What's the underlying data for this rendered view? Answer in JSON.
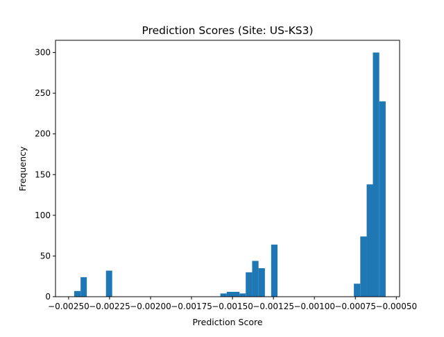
{
  "chart_data": {
    "type": "bar",
    "subtype": "histogram",
    "title": "Prediction Scores (Site: US-KS3)",
    "xlabel": "Prediction Score",
    "ylabel": "Frequency",
    "xlim": [
      -0.00258,
      -0.00048
    ],
    "ylim": [
      0,
      315
    ],
    "grid": false,
    "bar_color": "#1f77b4",
    "x_ticks": [
      {
        "value": -0.0025,
        "label": "−0.00250"
      },
      {
        "value": -0.00225,
        "label": "−0.00225"
      },
      {
        "value": -0.002,
        "label": "−0.00200"
      },
      {
        "value": -0.00175,
        "label": "−0.00175"
      },
      {
        "value": -0.0015,
        "label": "−0.00150"
      },
      {
        "value": -0.00125,
        "label": "−0.00125"
      },
      {
        "value": -0.001,
        "label": "−0.00100"
      },
      {
        "value": -0.00075,
        "label": "−0.00075"
      },
      {
        "value": -0.0005,
        "label": "−0.00050"
      }
    ],
    "y_ticks": [
      {
        "value": 0,
        "label": "0"
      },
      {
        "value": 50,
        "label": "50"
      },
      {
        "value": 100,
        "label": "100"
      },
      {
        "value": 150,
        "label": "150"
      },
      {
        "value": 200,
        "label": "200"
      },
      {
        "value": 250,
        "label": "250"
      },
      {
        "value": 300,
        "label": "300"
      }
    ],
    "bins": [
      {
        "x0": -0.002466,
        "x1": -0.002427,
        "count": 7
      },
      {
        "x0": -0.002427,
        "x1": -0.002389,
        "count": 24
      },
      {
        "x0": -0.002272,
        "x1": -0.002234,
        "count": 32
      },
      {
        "x0": -0.001574,
        "x1": -0.001535,
        "count": 4
      },
      {
        "x0": -0.001535,
        "x1": -0.001496,
        "count": 6
      },
      {
        "x0": -0.001496,
        "x1": -0.001457,
        "count": 6
      },
      {
        "x0": -0.001457,
        "x1": -0.001419,
        "count": 4
      },
      {
        "x0": -0.001419,
        "x1": -0.00138,
        "count": 30
      },
      {
        "x0": -0.00138,
        "x1": -0.001341,
        "count": 44
      },
      {
        "x0": -0.001341,
        "x1": -0.001302,
        "count": 35
      },
      {
        "x0": -0.001264,
        "x1": -0.001225,
        "count": 64
      },
      {
        "x0": -0.000759,
        "x1": -0.00072,
        "count": 16
      },
      {
        "x0": -0.00072,
        "x1": -0.000681,
        "count": 74
      },
      {
        "x0": -0.000681,
        "x1": -0.000643,
        "count": 138
      },
      {
        "x0": -0.000643,
        "x1": -0.000604,
        "count": 300
      },
      {
        "x0": -0.000604,
        "x1": -0.000565,
        "count": 240
      }
    ]
  }
}
